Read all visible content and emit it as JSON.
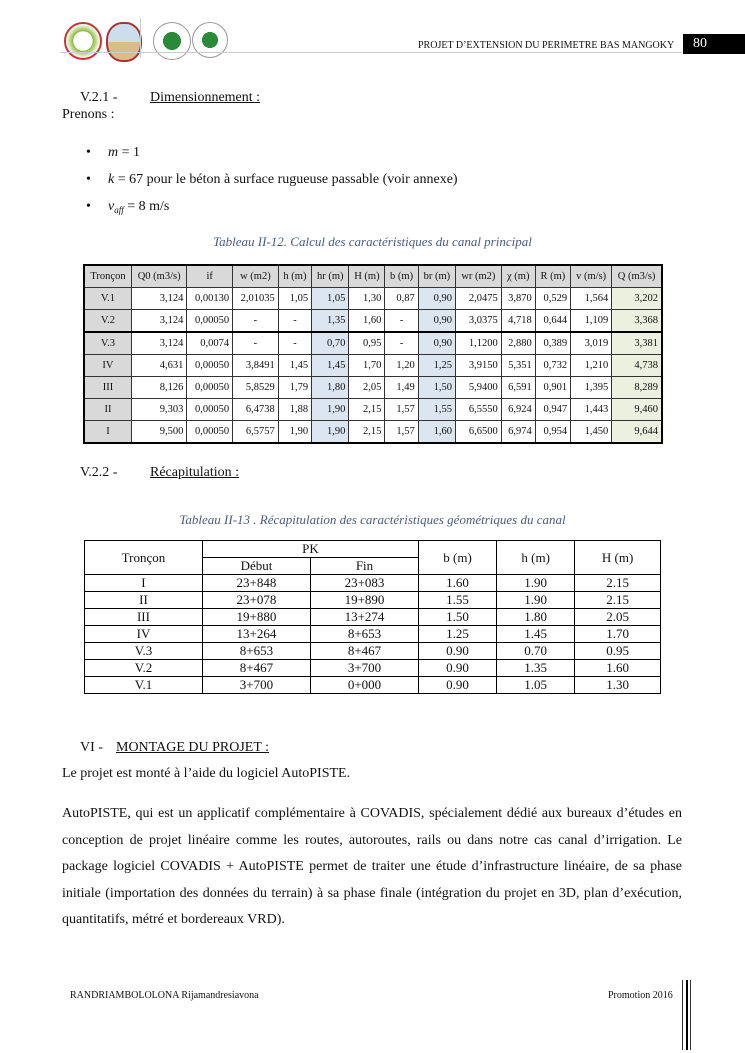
{
  "header": {
    "title": "PROJET D’EXTENSION DU PERIMETRE BAS MANGOKY",
    "page_number": "80"
  },
  "section_v21": {
    "number": "V.2.1 -",
    "title": "Dimensionnement :",
    "intro": "Prenons :"
  },
  "bullets": [
    {
      "var": "m",
      "sub": "",
      "text": " = 1"
    },
    {
      "var": "k",
      "sub": "",
      "text": " = 67 pour le béton à surface rugueuse passable (voir annexe)"
    },
    {
      "var": "v",
      "sub": "aff",
      "text": " = 8 m/s"
    }
  ],
  "table1": {
    "caption": "Tableau II-12. Calcul des caractéristiques du canal principal",
    "headers": [
      "Tronçon",
      "Q0 (m3/s)",
      "if",
      "w (m2)",
      "h (m)",
      "hr (m)",
      "H (m)",
      "b (m)",
      "br (m)",
      "wr (m2)",
      "χ (m)",
      "R (m)",
      "v (m/s)",
      "Q (m3/s)"
    ],
    "rows": [
      [
        "V.1",
        "3,124",
        "0,00130",
        "2,01035",
        "1,05",
        "1,05",
        "1,30",
        "0,87",
        "0,90",
        "2,0475",
        "3,870",
        "0,529",
        "1,564",
        "3,202"
      ],
      [
        "V.2",
        "3,124",
        "0,00050",
        "-",
        "-",
        "1,35",
        "1,60",
        "-",
        "0,90",
        "3,0375",
        "4,718",
        "0,644",
        "1,109",
        "3,368"
      ],
      [
        "V.3",
        "3,124",
        "0,0074",
        "-",
        "-",
        "0,70",
        "0,95",
        "-",
        "0,90",
        "1,1200",
        "2,880",
        "0,389",
        "3,019",
        "3,381"
      ],
      [
        "IV",
        "4,631",
        "0,00050",
        "3,8491",
        "1,45",
        "1,45",
        "1,70",
        "1,20",
        "1,25",
        "3,9150",
        "5,351",
        "0,732",
        "1,210",
        "4,738"
      ],
      [
        "III",
        "8,126",
        "0,00050",
        "5,8529",
        "1,79",
        "1,80",
        "2,05",
        "1,49",
        "1,50",
        "5,9400",
        "6,591",
        "0,901",
        "1,395",
        "8,289"
      ],
      [
        "II",
        "9,303",
        "0,00050",
        "6,4738",
        "1,88",
        "1,90",
        "2,15",
        "1,57",
        "1,55",
        "6,5550",
        "6,924",
        "0,947",
        "1,443",
        "9,460"
      ],
      [
        "I",
        "9,500",
        "0,00050",
        "6,5757",
        "1,90",
        "1,90",
        "2,15",
        "1,57",
        "1,60",
        "6,6500",
        "6,974",
        "0,954",
        "1,450",
        "9,644"
      ]
    ]
  },
  "section_v22": {
    "number": "V.2.2 -",
    "title": "Récapitulation :"
  },
  "table2": {
    "caption": "Tableau II-13 . Récapitulation des caractéristiques géométriques du canal",
    "headers": {
      "troncon": "Tronçon",
      "pk": "PK",
      "debut": "Début",
      "fin": "Fin",
      "b": "b (m)",
      "h": "h (m)",
      "H": "H (m)"
    },
    "rows": [
      [
        "I",
        "23+848",
        "23+083",
        "1.60",
        "1.90",
        "2.15"
      ],
      [
        "II",
        "23+078",
        "19+890",
        "1.55",
        "1.90",
        "2.15"
      ],
      [
        "III",
        "19+880",
        "13+274",
        "1.50",
        "1.80",
        "2.05"
      ],
      [
        "IV",
        "13+264",
        "8+653",
        "1.25",
        "1.45",
        "1.70"
      ],
      [
        "V.3",
        "8+653",
        "8+467",
        "0.90",
        "0.70",
        "0.95"
      ],
      [
        "V.2",
        "8+467",
        "3+700",
        "0.90",
        "1.35",
        "1.60"
      ],
      [
        "V.1",
        "3+700",
        "0+000",
        "0.90",
        "1.05",
        "1.30"
      ]
    ]
  },
  "section_vi": {
    "number": "VI -",
    "title": "MONTAGE DU PROJET :",
    "intro": "Le projet est monté à l’aide du logiciel AutoPISTE.",
    "paragraph": "AutoPISTE, qui est un applicatif complémentaire à COVADIS, spécialement dédié aux bureaux d’études en conception de projet linéaire comme les routes, autoroutes, rails ou dans notre cas canal d’irrigation. Le package logiciel COVADIS + AutoPISTE permet de traiter une étude d’infrastructure linéaire, de sa phase initiale (importation des données du terrain) à sa phase finale (intégration du projet en 3D, plan d’exécution, quantitatifs, métré et bordereaux VRD)."
  },
  "footer": {
    "author": "RANDRIAMBOLOLONA Rijamandresiavona",
    "promotion": "Promotion 2016"
  }
}
